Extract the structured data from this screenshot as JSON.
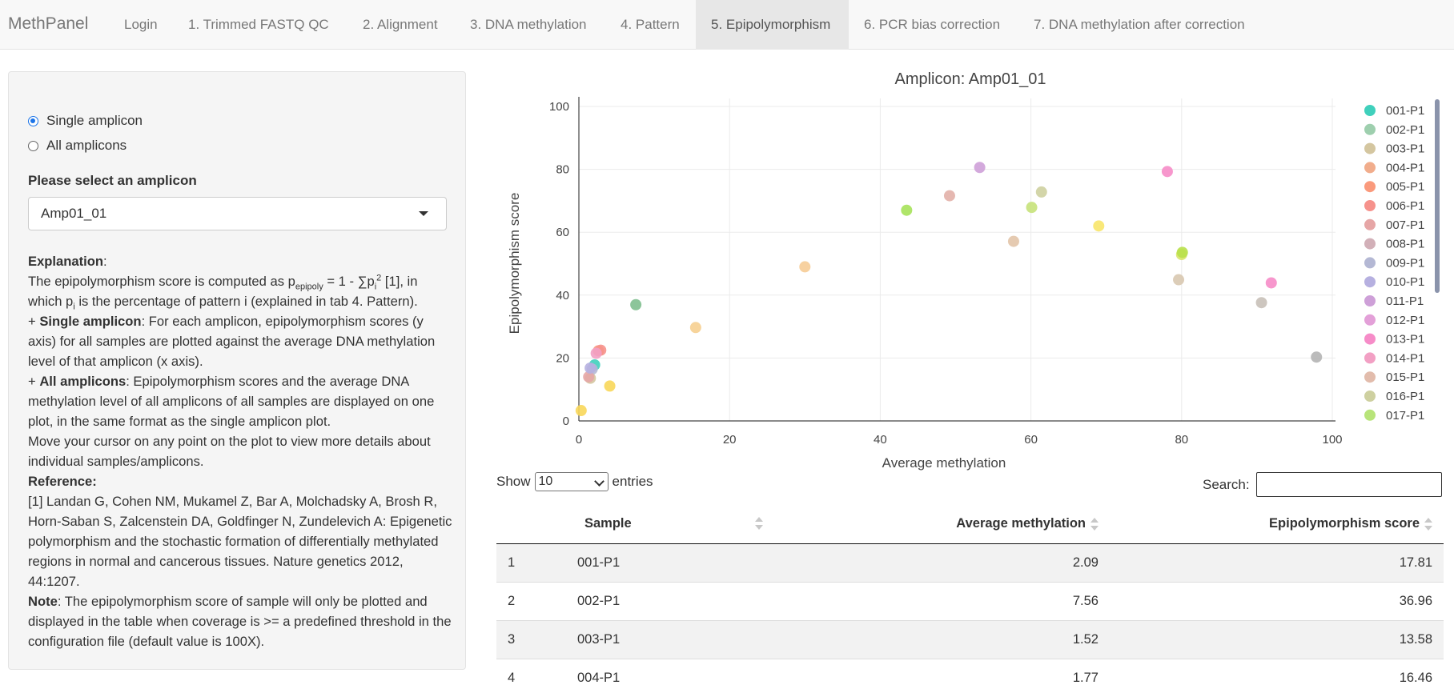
{
  "app": {
    "brand": "MethPanel"
  },
  "nav": {
    "tabs": [
      {
        "label": "Login"
      },
      {
        "label": "1. Trimmed FASTQ QC"
      },
      {
        "label": "2. Alignment"
      },
      {
        "label": "3. DNA methylation"
      },
      {
        "label": "4. Pattern"
      },
      {
        "label": "5. Epipolymorphism",
        "active": true
      },
      {
        "label": "6. PCR bias correction"
      },
      {
        "label": "7. DNA methylation after correction"
      }
    ]
  },
  "sidebar": {
    "radio_single": "Single amplicon",
    "radio_all": "All amplicons",
    "selected_mode": "single",
    "select_label": "Please select an amplicon",
    "select_value": "Amp01_01",
    "explanation": {
      "heading": "Explanation",
      "formula_pre": "The epipolymorphism score is computed as p",
      "formula_sub": "epipoly",
      "formula_mid": " = 1 - ∑p",
      "formula_sub2": "i",
      "formula_sup": "2",
      "formula_post": " [1], in which p",
      "pi_sub": "i",
      "formula_tail": " is the percentage of pattern i (explained in tab 4. Pattern).",
      "single_bold": "Single amplicon",
      "single_text": ": For each amplicon, epipolymorphism scores (y axis) for all samples are plotted against the average DNA methylation level of that amplicon (x axis).",
      "all_bold": "All amplicons",
      "all_text": ": Epipolymorphism scores and the average DNA methylation level of all amplicons of all samples are displayed on one plot, in the same format as the single amplicon plot.",
      "hover_text": "Move your cursor on any point on the plot to view more details about individual samples/amplicons.",
      "reference_heading": "Reference:",
      "reference_text": "[1] Landan G, Cohen NM, Mukamel Z, Bar A, Molchadsky A, Brosh R, Horn-Saban S, Zalcenstein DA, Goldfinger N, Zundelevich A: Epigenetic polymorphism and the stochastic formation of differentially methylated regions in normal and cancerous tissues. Nature genetics 2012, 44:1207.",
      "note_heading": "Note",
      "note_text": ": The epipolymorphism score of sample will only be plotted and displayed in the table when coverage is >= a predefined threshold in the configuration file (default value is 100X)."
    }
  },
  "chart_data": {
    "type": "scatter",
    "title": "Amplicon: Amp01_01",
    "xlabel": "Average methylation",
    "ylabel": "Epipolymorphism score",
    "xlim": [
      0,
      100
    ],
    "ylim": [
      0,
      100
    ],
    "xticks": [
      0,
      20,
      40,
      60,
      80,
      100
    ],
    "yticks": [
      0,
      20,
      40,
      60,
      80,
      100
    ],
    "grid": true,
    "legend_position": "right",
    "legend": [
      {
        "name": "001-P1",
        "color": "#40d0bc"
      },
      {
        "name": "002-P1",
        "color": "#9ecfae"
      },
      {
        "name": "003-P1",
        "color": "#d4c6a0"
      },
      {
        "name": "004-P1",
        "color": "#f1ad8c"
      },
      {
        "name": "005-P1",
        "color": "#fa9a7c"
      },
      {
        "name": "006-P1",
        "color": "#f6928c"
      },
      {
        "name": "007-P1",
        "color": "#e6a6a6"
      },
      {
        "name": "008-P1",
        "color": "#d2b0b8"
      },
      {
        "name": "009-P1",
        "color": "#b4b8d4"
      },
      {
        "name": "010-P1",
        "color": "#b6b0e0"
      },
      {
        "name": "011-P1",
        "color": "#cea0d8"
      },
      {
        "name": "012-P1",
        "color": "#e3a0d8"
      },
      {
        "name": "013-P1",
        "color": "#f68cc8"
      },
      {
        "name": "014-P1",
        "color": "#f2a0c4"
      },
      {
        "name": "015-P1",
        "color": "#e2bcac"
      },
      {
        "name": "016-P1",
        "color": "#ced0a0"
      },
      {
        "name": "017-P1",
        "color": "#b8e47a"
      }
    ],
    "points": [
      {
        "x": 2.09,
        "y": 17.81,
        "color": "#40d0bc"
      },
      {
        "x": 7.56,
        "y": 36.96,
        "color": "#7fbf8f"
      },
      {
        "x": 1.52,
        "y": 13.58,
        "color": "#d4c6a0"
      },
      {
        "x": 1.77,
        "y": 16.46,
        "color": "#b4b8d4"
      },
      {
        "x": 2.6,
        "y": 22.3,
        "color": "#fa9a7c"
      },
      {
        "x": 2.9,
        "y": 22.5,
        "color": "#f6928c"
      },
      {
        "x": 2.3,
        "y": 21.5,
        "color": "#f2a0c4"
      },
      {
        "x": 1.3,
        "y": 14.0,
        "color": "#e6a6a6"
      },
      {
        "x": 1.5,
        "y": 16.8,
        "color": "#b6b0e0"
      },
      {
        "x": 0.3,
        "y": 3.3,
        "color": "#f8d75a"
      },
      {
        "x": 4.1,
        "y": 11.1,
        "color": "#f8d75a"
      },
      {
        "x": 15.5,
        "y": 29.7,
        "color": "#f6cf90"
      },
      {
        "x": 30.0,
        "y": 49.0,
        "color": "#f6cc96"
      },
      {
        "x": 43.5,
        "y": 67.0,
        "color": "#a6e25a"
      },
      {
        "x": 49.2,
        "y": 71.6,
        "color": "#e2b0a8"
      },
      {
        "x": 53.2,
        "y": 80.6,
        "color": "#cea0d8"
      },
      {
        "x": 57.7,
        "y": 57.1,
        "color": "#e2c4a8"
      },
      {
        "x": 60.1,
        "y": 67.9,
        "color": "#c6e27a"
      },
      {
        "x": 61.4,
        "y": 72.8,
        "color": "#ced0a0"
      },
      {
        "x": 69.0,
        "y": 62.0,
        "color": "#f8e66a"
      },
      {
        "x": 78.1,
        "y": 79.3,
        "color": "#f68cc8"
      },
      {
        "x": 79.6,
        "y": 44.9,
        "color": "#d8c8b0"
      },
      {
        "x": 80.0,
        "y": 52.9,
        "color": "#d8e46a"
      },
      {
        "x": 80.1,
        "y": 53.6,
        "color": "#b8e04a"
      },
      {
        "x": 90.6,
        "y": 37.6,
        "color": "#c8c0b8"
      },
      {
        "x": 91.9,
        "y": 43.9,
        "color": "#f68cc8"
      },
      {
        "x": 97.9,
        "y": 20.3,
        "color": "#b4b4b4"
      }
    ]
  },
  "table": {
    "show_label": "Show",
    "entries_value": "10",
    "entries_label": "entries",
    "search_label": "Search:",
    "headers": [
      "",
      "Sample",
      "Average methylation",
      "Epipolymorphism score"
    ],
    "rows": [
      {
        "idx": "1",
        "sample": "001-P1",
        "avg": "2.09",
        "epi": "17.81"
      },
      {
        "idx": "2",
        "sample": "002-P1",
        "avg": "7.56",
        "epi": "36.96"
      },
      {
        "idx": "3",
        "sample": "003-P1",
        "avg": "1.52",
        "epi": "13.58"
      },
      {
        "idx": "4",
        "sample": "004-P1",
        "avg": "1.77",
        "epi": "16.46"
      }
    ]
  }
}
